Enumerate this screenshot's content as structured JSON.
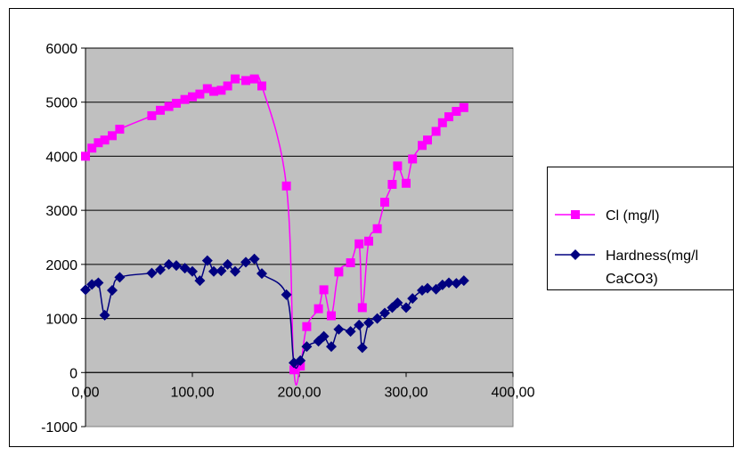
{
  "chart_data": {
    "type": "line",
    "xlim": [
      0,
      400
    ],
    "ylim": [
      -1000,
      6000
    ],
    "x_ticks": [
      "0,00",
      "100,00",
      "200,00",
      "300,00",
      "400,00"
    ],
    "y_ticks": [
      "-1000",
      "0",
      "1000",
      "2000",
      "3000",
      "4000",
      "5000",
      "6000"
    ],
    "grid": "horizontal",
    "plot_background": "#c0c0c0",
    "legend_position": "right",
    "series": [
      {
        "name": "Cl (mg/l)",
        "color": "#ff00ff",
        "marker": "square",
        "points": [
          [
            0,
            4000
          ],
          [
            6,
            4150
          ],
          [
            12,
            4250
          ],
          [
            18,
            4300
          ],
          [
            25,
            4380
          ],
          [
            32,
            4500
          ],
          [
            62,
            4750
          ],
          [
            70,
            4850
          ],
          [
            78,
            4920
          ],
          [
            85,
            4980
          ],
          [
            93,
            5050
          ],
          [
            100,
            5100
          ],
          [
            107,
            5150
          ],
          [
            114,
            5250
          ],
          [
            120,
            5200
          ],
          [
            127,
            5220
          ],
          [
            133,
            5300
          ],
          [
            140,
            5430
          ],
          [
            150,
            5400
          ],
          [
            158,
            5430
          ],
          [
            165,
            5300
          ],
          [
            188,
            3450
          ],
          [
            195,
            50
          ],
          [
            201,
            120
          ],
          [
            207,
            850
          ],
          [
            218,
            1180
          ],
          [
            223,
            1530
          ],
          [
            230,
            1050
          ],
          [
            237,
            1860
          ],
          [
            248,
            2030
          ],
          [
            256,
            2380
          ],
          [
            259,
            1200
          ],
          [
            265,
            2430
          ],
          [
            273,
            2660
          ],
          [
            280,
            3150
          ],
          [
            287,
            3480
          ],
          [
            292,
            3820
          ],
          [
            300,
            3500
          ],
          [
            306,
            3950
          ],
          [
            315,
            4200
          ],
          [
            320,
            4300
          ],
          [
            328,
            4460
          ],
          [
            334,
            4620
          ],
          [
            340,
            4730
          ],
          [
            347,
            4830
          ],
          [
            354,
            4900
          ]
        ]
      },
      {
        "name": "Hardness(mg/l CaCO3)",
        "color": "#000080",
        "marker": "diamond",
        "points": [
          [
            0,
            1530
          ],
          [
            6,
            1630
          ],
          [
            12,
            1660
          ],
          [
            18,
            1060
          ],
          [
            25,
            1520
          ],
          [
            32,
            1760
          ],
          [
            62,
            1840
          ],
          [
            70,
            1900
          ],
          [
            78,
            2000
          ],
          [
            85,
            1980
          ],
          [
            93,
            1930
          ],
          [
            100,
            1870
          ],
          [
            107,
            1700
          ],
          [
            114,
            2070
          ],
          [
            120,
            1870
          ],
          [
            127,
            1880
          ],
          [
            133,
            2000
          ],
          [
            140,
            1870
          ],
          [
            150,
            2040
          ],
          [
            158,
            2100
          ],
          [
            165,
            1830
          ],
          [
            188,
            1440
          ],
          [
            195,
            180
          ],
          [
            201,
            220
          ],
          [
            207,
            480
          ],
          [
            218,
            580
          ],
          [
            223,
            670
          ],
          [
            230,
            480
          ],
          [
            237,
            800
          ],
          [
            248,
            760
          ],
          [
            256,
            880
          ],
          [
            259,
            460
          ],
          [
            265,
            920
          ],
          [
            273,
            1000
          ],
          [
            280,
            1100
          ],
          [
            287,
            1200
          ],
          [
            292,
            1290
          ],
          [
            300,
            1200
          ],
          [
            306,
            1370
          ],
          [
            315,
            1520
          ],
          [
            320,
            1560
          ],
          [
            328,
            1540
          ],
          [
            334,
            1620
          ],
          [
            340,
            1660
          ],
          [
            347,
            1650
          ],
          [
            354,
            1700
          ]
        ]
      }
    ],
    "legend": [
      {
        "label": "Cl (mg/l)"
      },
      {
        "label_line1": "Hardness(mg/l",
        "label_line2": "CaCO3)"
      }
    ]
  }
}
